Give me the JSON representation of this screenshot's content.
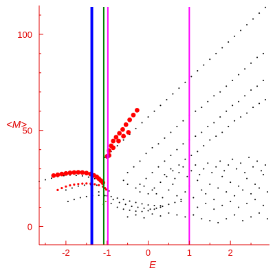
{
  "chart_data": {
    "type": "scatter",
    "xlabel": "E",
    "ylabel": "<M>",
    "xlim": [
      -2.65,
      2.95
    ],
    "ylim": [
      -9.5,
      115
    ],
    "x_ticks": [
      -2,
      -1,
      0,
      1,
      2
    ],
    "x_tick_labels": [
      "-2",
      "-1",
      "0",
      "1",
      "2"
    ],
    "y_ticks": [
      0,
      50,
      100
    ],
    "y_tick_labels": [
      "0",
      "50",
      "100"
    ],
    "grid": false,
    "colors": {
      "axis": "#e00000",
      "text": "#e00000"
    },
    "vertical_lines": [
      {
        "x": -1.37,
        "color": "#0000ff",
        "weight": "thick"
      },
      {
        "x": -1.08,
        "color": "#008000",
        "weight": "thin"
      },
      {
        "x": -0.98,
        "color": "#ff00ff",
        "weight": "thin"
      },
      {
        "x": 1.0,
        "color": "#ff00ff",
        "weight": "thin"
      }
    ],
    "series": [
      {
        "color": "#000000",
        "marker": "dot",
        "points": [
          [
            -2.65,
            23.5
          ],
          [
            -2.5,
            24.3
          ],
          [
            -2.35,
            25.1
          ],
          [
            -2.2,
            25.9
          ],
          [
            -2.05,
            26.4
          ],
          [
            -1.9,
            26.7
          ],
          [
            -1.75,
            26.6
          ],
          [
            -1.6,
            26.3
          ],
          [
            -1.45,
            25.7
          ],
          [
            -1.3,
            24.9
          ],
          [
            -1.2,
            24.2
          ],
          [
            -1.1,
            23.4
          ],
          [
            -1.05,
            36
          ],
          [
            -0.9,
            39
          ],
          [
            -0.75,
            42
          ],
          [
            -0.6,
            45
          ],
          [
            -0.45,
            48
          ],
          [
            -0.3,
            51
          ],
          [
            -0.15,
            54
          ],
          [
            0.0,
            57
          ],
          [
            0.15,
            60
          ],
          [
            0.3,
            63
          ],
          [
            0.45,
            66
          ],
          [
            0.6,
            69
          ],
          [
            0.75,
            72
          ],
          [
            0.9,
            75
          ],
          [
            1.05,
            78
          ],
          [
            1.2,
            81
          ],
          [
            1.35,
            84
          ],
          [
            1.5,
            87
          ],
          [
            1.65,
            90
          ],
          [
            1.8,
            93
          ],
          [
            1.95,
            96
          ],
          [
            2.1,
            99
          ],
          [
            2.25,
            102
          ],
          [
            2.4,
            105
          ],
          [
            2.55,
            108
          ],
          [
            2.7,
            111
          ],
          [
            2.85,
            114
          ],
          [
            -0.5,
            28
          ],
          [
            -0.35,
            31
          ],
          [
            -0.2,
            34
          ],
          [
            -0.05,
            38
          ],
          [
            0.1,
            41
          ],
          [
            0.25,
            43
          ],
          [
            0.4,
            46
          ],
          [
            0.55,
            49
          ],
          [
            0.7,
            52
          ],
          [
            0.85,
            55
          ],
          [
            1.0,
            58
          ],
          [
            1.15,
            60
          ],
          [
            1.3,
            62
          ],
          [
            1.45,
            65
          ],
          [
            1.6,
            68
          ],
          [
            1.75,
            70
          ],
          [
            1.9,
            73
          ],
          [
            2.05,
            76
          ],
          [
            2.2,
            79
          ],
          [
            2.35,
            82
          ],
          [
            2.5,
            85
          ],
          [
            2.65,
            88
          ],
          [
            2.8,
            90
          ],
          [
            -0.2,
            22
          ],
          [
            -0.05,
            25
          ],
          [
            0.1,
            28
          ],
          [
            0.25,
            31
          ],
          [
            0.4,
            34
          ],
          [
            0.55,
            37
          ],
          [
            0.7,
            40
          ],
          [
            0.85,
            43
          ],
          [
            1.0,
            45
          ],
          [
            1.15,
            47
          ],
          [
            1.3,
            49
          ],
          [
            1.45,
            52
          ],
          [
            1.6,
            54
          ],
          [
            1.75,
            57
          ],
          [
            1.9,
            60
          ],
          [
            2.05,
            63
          ],
          [
            2.2,
            65
          ],
          [
            2.35,
            68
          ],
          [
            2.5,
            71
          ],
          [
            2.65,
            73
          ],
          [
            2.8,
            76
          ],
          [
            0.0,
            17
          ],
          [
            0.15,
            20
          ],
          [
            0.3,
            23
          ],
          [
            0.45,
            26
          ],
          [
            0.6,
            29
          ],
          [
            0.75,
            32
          ],
          [
            0.9,
            35
          ],
          [
            1.05,
            37
          ],
          [
            1.2,
            39
          ],
          [
            1.35,
            42
          ],
          [
            1.5,
            45
          ],
          [
            1.65,
            47
          ],
          [
            1.8,
            49
          ],
          [
            1.95,
            52
          ],
          [
            2.1,
            55
          ],
          [
            2.25,
            57
          ],
          [
            2.4,
            59
          ],
          [
            2.55,
            62
          ],
          [
            2.7,
            64
          ],
          [
            2.85,
            66
          ],
          [
            -2.0,
            19
          ],
          [
            -1.85,
            20
          ],
          [
            -1.7,
            21
          ],
          [
            -1.55,
            21.5
          ],
          [
            -1.4,
            21.8
          ],
          [
            -1.25,
            21.5
          ],
          [
            -1.1,
            20.5
          ],
          [
            -0.95,
            18.5
          ],
          [
            -1.95,
            13
          ],
          [
            -1.8,
            14
          ],
          [
            -1.65,
            15
          ],
          [
            -1.5,
            15.6
          ],
          [
            -1.35,
            16
          ],
          [
            -1.2,
            16.2
          ],
          [
            -1.05,
            16.1
          ],
          [
            -0.9,
            15.6
          ],
          [
            -0.75,
            14.8
          ],
          [
            -0.6,
            14
          ],
          [
            -0.45,
            13.2
          ],
          [
            -0.3,
            12.5
          ],
          [
            -0.15,
            11.8
          ],
          [
            0.0,
            11.2
          ],
          [
            0.15,
            10.9
          ],
          [
            0.3,
            10.8
          ],
          [
            -1.2,
            18
          ],
          [
            -1.0,
            16
          ],
          [
            -0.85,
            14
          ],
          [
            -0.7,
            12.5
          ],
          [
            -0.55,
            11.5
          ],
          [
            -0.4,
            10.5
          ],
          [
            -0.25,
            10
          ],
          [
            -0.1,
            9.5
          ],
          [
            0.05,
            9
          ],
          [
            0.2,
            9.5
          ],
          [
            0.35,
            10.5
          ],
          [
            0.5,
            11.5
          ],
          [
            0.65,
            12.5
          ],
          [
            0.8,
            13
          ],
          [
            -0.9,
            12
          ],
          [
            -0.75,
            10
          ],
          [
            -0.6,
            9
          ],
          [
            -0.45,
            8.5
          ],
          [
            -0.3,
            8
          ],
          [
            -0.15,
            7.8
          ],
          [
            0.0,
            8.2
          ],
          [
            0.15,
            9
          ],
          [
            0.3,
            10
          ],
          [
            -0.6,
            24
          ],
          [
            -0.5,
            22
          ],
          [
            -0.3,
            20
          ],
          [
            -0.2,
            18
          ],
          [
            -0.1,
            21
          ],
          [
            0.1,
            19
          ],
          [
            0.2,
            17
          ],
          [
            0.35,
            15
          ],
          [
            0.5,
            19
          ],
          [
            0.6,
            22
          ],
          [
            0.7,
            16
          ],
          [
            0.8,
            14
          ],
          [
            0.9,
            18
          ],
          [
            1.0,
            21
          ],
          [
            1.1,
            15
          ],
          [
            1.2,
            24
          ],
          [
            1.3,
            19
          ],
          [
            1.4,
            17
          ],
          [
            1.5,
            22
          ],
          [
            1.6,
            14
          ],
          [
            1.7,
            20
          ],
          [
            1.8,
            26
          ],
          [
            1.9,
            18
          ],
          [
            2.0,
            23
          ],
          [
            2.1,
            16
          ],
          [
            2.2,
            21
          ],
          [
            2.3,
            19
          ],
          [
            2.4,
            25
          ],
          [
            2.5,
            17
          ],
          [
            2.6,
            22
          ],
          [
            2.7,
            20
          ],
          [
            2.8,
            27
          ],
          [
            2.9,
            18
          ],
          [
            0.4,
            27
          ],
          [
            0.55,
            30
          ],
          [
            0.65,
            25
          ],
          [
            0.75,
            28
          ],
          [
            0.85,
            31
          ],
          [
            0.95,
            26
          ],
          [
            1.05,
            29
          ],
          [
            1.15,
            32
          ],
          [
            1.25,
            27
          ],
          [
            1.35,
            30
          ],
          [
            1.45,
            33
          ],
          [
            1.55,
            28
          ],
          [
            1.65,
            31
          ],
          [
            1.75,
            34
          ],
          [
            1.85,
            29
          ],
          [
            1.95,
            32
          ],
          [
            2.05,
            35
          ],
          [
            2.15,
            30
          ],
          [
            2.25,
            33
          ],
          [
            2.35,
            28
          ],
          [
            2.45,
            36
          ],
          [
            2.55,
            31
          ],
          [
            2.65,
            34
          ],
          [
            2.75,
            29
          ],
          [
            2.85,
            32
          ],
          [
            0.9,
            5
          ],
          [
            1.1,
            6
          ],
          [
            1.3,
            4
          ],
          [
            1.5,
            3
          ],
          [
            1.7,
            2
          ],
          [
            1.9,
            4
          ],
          [
            2.1,
            6
          ],
          [
            2.3,
            3
          ],
          [
            2.5,
            5
          ],
          [
            2.7,
            7
          ],
          [
            2.9,
            4
          ],
          [
            1.2,
            10
          ],
          [
            1.4,
            12
          ],
          [
            1.6,
            9
          ],
          [
            1.8,
            11
          ],
          [
            2.0,
            13
          ],
          [
            2.2,
            10
          ],
          [
            2.4,
            12
          ],
          [
            2.6,
            14
          ],
          [
            2.8,
            11
          ],
          [
            -0.5,
            5
          ],
          [
            -0.3,
            6
          ],
          [
            -0.1,
            4.5
          ],
          [
            0.1,
            6.5
          ],
          [
            0.3,
            5.5
          ],
          [
            0.5,
            7
          ],
          [
            0.7,
            6
          ]
        ]
      },
      {
        "color": "#ff0000",
        "marker": "dot-large",
        "points": [
          [
            -2.3,
            26.5
          ],
          [
            -2.2,
            26.9
          ],
          [
            -2.1,
            27.3
          ],
          [
            -2.0,
            27.6
          ],
          [
            -1.9,
            27.9
          ],
          [
            -1.8,
            28.1
          ],
          [
            -1.7,
            28.2
          ],
          [
            -1.6,
            28.1
          ],
          [
            -1.5,
            27.8
          ],
          [
            -1.4,
            27.3
          ],
          [
            -1.32,
            26.6
          ],
          [
            -1.25,
            25.8
          ],
          [
            -1.2,
            24.9
          ],
          [
            -1.15,
            23.9
          ],
          [
            -1.1,
            22.8
          ],
          [
            -1.0,
            36.5
          ],
          [
            -0.95,
            39.5
          ],
          [
            -0.9,
            42
          ],
          [
            -0.85,
            44.5
          ],
          [
            -0.78,
            46.5
          ],
          [
            -0.7,
            48.5
          ],
          [
            -0.62,
            50.5
          ],
          [
            -0.54,
            53
          ],
          [
            -0.45,
            55.5
          ],
          [
            -0.36,
            58
          ],
          [
            -0.27,
            60.5
          ],
          [
            -0.95,
            37
          ],
          [
            -0.85,
            41
          ],
          [
            -0.72,
            44.5
          ],
          [
            -0.6,
            47
          ],
          [
            -0.48,
            49
          ]
        ]
      },
      {
        "color": "#ff0000",
        "marker": "dot-small",
        "points": [
          [
            -2.2,
            19
          ],
          [
            -2.1,
            20
          ],
          [
            -2.0,
            20.8
          ],
          [
            -1.9,
            21.4
          ],
          [
            -1.8,
            21.8
          ],
          [
            -1.7,
            22.1
          ],
          [
            -1.6,
            22.3
          ],
          [
            -1.5,
            22.4
          ],
          [
            -1.4,
            22.3
          ],
          [
            -1.3,
            22.0
          ],
          [
            -1.2,
            21.5
          ],
          [
            -1.1,
            20.8
          ],
          [
            -1.05,
            20.0
          ],
          [
            -1.02,
            19.2
          ]
        ]
      },
      {
        "color": "#808000",
        "marker": "dot",
        "points": [
          [
            -1.09,
            11.5
          ],
          [
            -1.03,
            13
          ]
        ]
      },
      {
        "color": "#cc0066",
        "marker": "dot-medium",
        "points": [
          [
            -0.98,
            36.5
          ]
        ]
      }
    ]
  }
}
